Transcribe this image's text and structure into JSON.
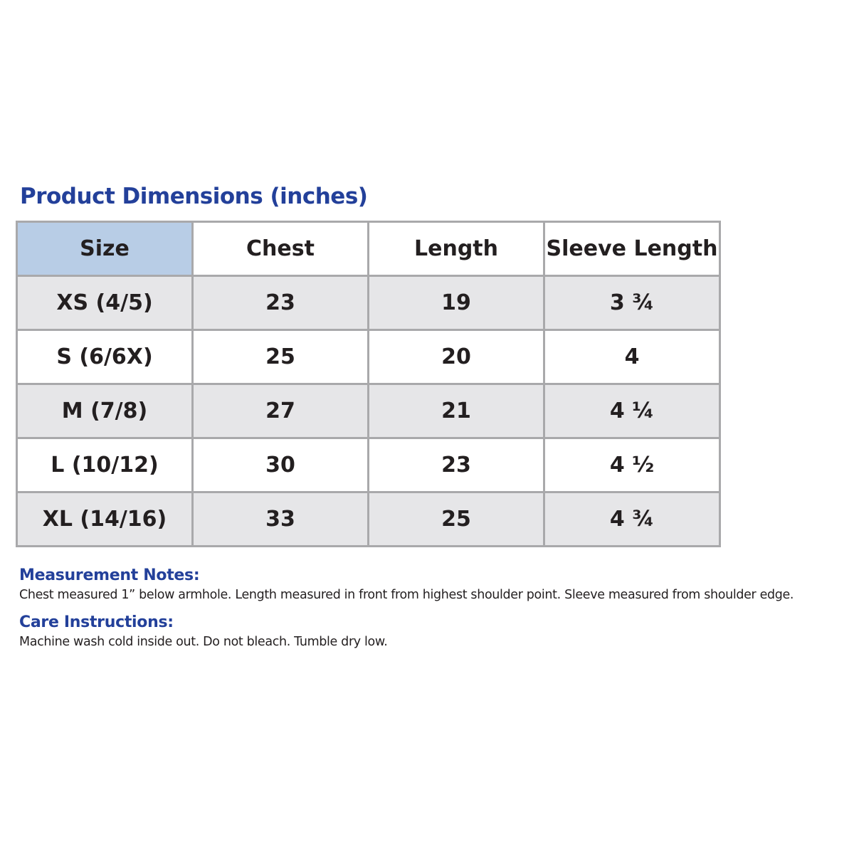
{
  "title": "Product Dimensions (inches)",
  "table": {
    "headers": [
      "Size",
      "Chest",
      "Length",
      "Sleeve Length"
    ],
    "rows": [
      {
        "size": "XS (4/5)",
        "chest": "23",
        "length": "19",
        "sleeve": "3 ¾"
      },
      {
        "size": "S (6/6X)",
        "chest": "25",
        "length": "20",
        "sleeve": "4"
      },
      {
        "size": "M (7/8)",
        "chest": "27",
        "length": "21",
        "sleeve": "4 ¼"
      },
      {
        "size": "L (10/12)",
        "chest": "30",
        "length": "23",
        "sleeve": "4 ½"
      },
      {
        "size": "XL (14/16)",
        "chest": "33",
        "length": "25",
        "sleeve": "4 ¾"
      }
    ]
  },
  "measurement_notes": {
    "heading": "Measurement Notes:",
    "text": "Chest measured 1” below armhole. Length measured in front from highest shoulder point. Sleeve measured from shoulder edge."
  },
  "care_instructions": {
    "heading": "Care Instructions:",
    "text": "Machine wash cold inside out. Do not bleach. Tumble dry low."
  },
  "colors": {
    "heading_blue": "#23409a",
    "header_size_cell": "#b8cde6",
    "shaded_row": "#e6e6e8",
    "border": "#a9a9ab",
    "text": "#231f20"
  }
}
